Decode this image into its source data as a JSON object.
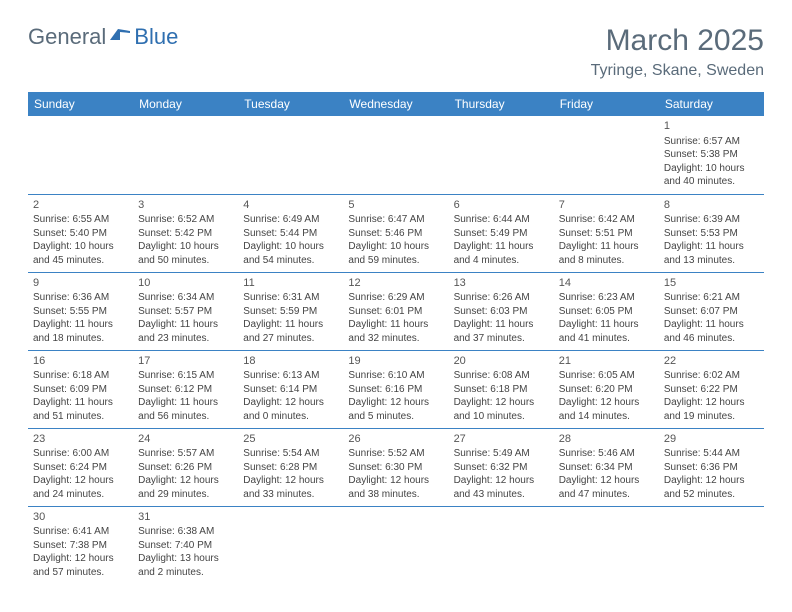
{
  "logo": {
    "dark": "General",
    "blue": "Blue"
  },
  "title": "March 2025",
  "location": "Tyringe, Skane, Sweden",
  "colors": {
    "header_bg": "#3b82c4",
    "header_text": "#ffffff",
    "border": "#3b82c4",
    "body_text": "#444444",
    "title_text": "#5a6b7a",
    "logo_blue": "#2f6fb0"
  },
  "weekdays": [
    "Sunday",
    "Monday",
    "Tuesday",
    "Wednesday",
    "Thursday",
    "Friday",
    "Saturday"
  ],
  "weeks": [
    [
      null,
      null,
      null,
      null,
      null,
      null,
      {
        "n": "1",
        "sr": "Sunrise: 6:57 AM",
        "ss": "Sunset: 5:38 PM",
        "d1": "Daylight: 10 hours",
        "d2": "and 40 minutes."
      }
    ],
    [
      {
        "n": "2",
        "sr": "Sunrise: 6:55 AM",
        "ss": "Sunset: 5:40 PM",
        "d1": "Daylight: 10 hours",
        "d2": "and 45 minutes."
      },
      {
        "n": "3",
        "sr": "Sunrise: 6:52 AM",
        "ss": "Sunset: 5:42 PM",
        "d1": "Daylight: 10 hours",
        "d2": "and 50 minutes."
      },
      {
        "n": "4",
        "sr": "Sunrise: 6:49 AM",
        "ss": "Sunset: 5:44 PM",
        "d1": "Daylight: 10 hours",
        "d2": "and 54 minutes."
      },
      {
        "n": "5",
        "sr": "Sunrise: 6:47 AM",
        "ss": "Sunset: 5:46 PM",
        "d1": "Daylight: 10 hours",
        "d2": "and 59 minutes."
      },
      {
        "n": "6",
        "sr": "Sunrise: 6:44 AM",
        "ss": "Sunset: 5:49 PM",
        "d1": "Daylight: 11 hours",
        "d2": "and 4 minutes."
      },
      {
        "n": "7",
        "sr": "Sunrise: 6:42 AM",
        "ss": "Sunset: 5:51 PM",
        "d1": "Daylight: 11 hours",
        "d2": "and 8 minutes."
      },
      {
        "n": "8",
        "sr": "Sunrise: 6:39 AM",
        "ss": "Sunset: 5:53 PM",
        "d1": "Daylight: 11 hours",
        "d2": "and 13 minutes."
      }
    ],
    [
      {
        "n": "9",
        "sr": "Sunrise: 6:36 AM",
        "ss": "Sunset: 5:55 PM",
        "d1": "Daylight: 11 hours",
        "d2": "and 18 minutes."
      },
      {
        "n": "10",
        "sr": "Sunrise: 6:34 AM",
        "ss": "Sunset: 5:57 PM",
        "d1": "Daylight: 11 hours",
        "d2": "and 23 minutes."
      },
      {
        "n": "11",
        "sr": "Sunrise: 6:31 AM",
        "ss": "Sunset: 5:59 PM",
        "d1": "Daylight: 11 hours",
        "d2": "and 27 minutes."
      },
      {
        "n": "12",
        "sr": "Sunrise: 6:29 AM",
        "ss": "Sunset: 6:01 PM",
        "d1": "Daylight: 11 hours",
        "d2": "and 32 minutes."
      },
      {
        "n": "13",
        "sr": "Sunrise: 6:26 AM",
        "ss": "Sunset: 6:03 PM",
        "d1": "Daylight: 11 hours",
        "d2": "and 37 minutes."
      },
      {
        "n": "14",
        "sr": "Sunrise: 6:23 AM",
        "ss": "Sunset: 6:05 PM",
        "d1": "Daylight: 11 hours",
        "d2": "and 41 minutes."
      },
      {
        "n": "15",
        "sr": "Sunrise: 6:21 AM",
        "ss": "Sunset: 6:07 PM",
        "d1": "Daylight: 11 hours",
        "d2": "and 46 minutes."
      }
    ],
    [
      {
        "n": "16",
        "sr": "Sunrise: 6:18 AM",
        "ss": "Sunset: 6:09 PM",
        "d1": "Daylight: 11 hours",
        "d2": "and 51 minutes."
      },
      {
        "n": "17",
        "sr": "Sunrise: 6:15 AM",
        "ss": "Sunset: 6:12 PM",
        "d1": "Daylight: 11 hours",
        "d2": "and 56 minutes."
      },
      {
        "n": "18",
        "sr": "Sunrise: 6:13 AM",
        "ss": "Sunset: 6:14 PM",
        "d1": "Daylight: 12 hours",
        "d2": "and 0 minutes."
      },
      {
        "n": "19",
        "sr": "Sunrise: 6:10 AM",
        "ss": "Sunset: 6:16 PM",
        "d1": "Daylight: 12 hours",
        "d2": "and 5 minutes."
      },
      {
        "n": "20",
        "sr": "Sunrise: 6:08 AM",
        "ss": "Sunset: 6:18 PM",
        "d1": "Daylight: 12 hours",
        "d2": "and 10 minutes."
      },
      {
        "n": "21",
        "sr": "Sunrise: 6:05 AM",
        "ss": "Sunset: 6:20 PM",
        "d1": "Daylight: 12 hours",
        "d2": "and 14 minutes."
      },
      {
        "n": "22",
        "sr": "Sunrise: 6:02 AM",
        "ss": "Sunset: 6:22 PM",
        "d1": "Daylight: 12 hours",
        "d2": "and 19 minutes."
      }
    ],
    [
      {
        "n": "23",
        "sr": "Sunrise: 6:00 AM",
        "ss": "Sunset: 6:24 PM",
        "d1": "Daylight: 12 hours",
        "d2": "and 24 minutes."
      },
      {
        "n": "24",
        "sr": "Sunrise: 5:57 AM",
        "ss": "Sunset: 6:26 PM",
        "d1": "Daylight: 12 hours",
        "d2": "and 29 minutes."
      },
      {
        "n": "25",
        "sr": "Sunrise: 5:54 AM",
        "ss": "Sunset: 6:28 PM",
        "d1": "Daylight: 12 hours",
        "d2": "and 33 minutes."
      },
      {
        "n": "26",
        "sr": "Sunrise: 5:52 AM",
        "ss": "Sunset: 6:30 PM",
        "d1": "Daylight: 12 hours",
        "d2": "and 38 minutes."
      },
      {
        "n": "27",
        "sr": "Sunrise: 5:49 AM",
        "ss": "Sunset: 6:32 PM",
        "d1": "Daylight: 12 hours",
        "d2": "and 43 minutes."
      },
      {
        "n": "28",
        "sr": "Sunrise: 5:46 AM",
        "ss": "Sunset: 6:34 PM",
        "d1": "Daylight: 12 hours",
        "d2": "and 47 minutes."
      },
      {
        "n": "29",
        "sr": "Sunrise: 5:44 AM",
        "ss": "Sunset: 6:36 PM",
        "d1": "Daylight: 12 hours",
        "d2": "and 52 minutes."
      }
    ],
    [
      {
        "n": "30",
        "sr": "Sunrise: 6:41 AM",
        "ss": "Sunset: 7:38 PM",
        "d1": "Daylight: 12 hours",
        "d2": "and 57 minutes."
      },
      {
        "n": "31",
        "sr": "Sunrise: 6:38 AM",
        "ss": "Sunset: 7:40 PM",
        "d1": "Daylight: 13 hours",
        "d2": "and 2 minutes."
      },
      null,
      null,
      null,
      null,
      null
    ]
  ]
}
